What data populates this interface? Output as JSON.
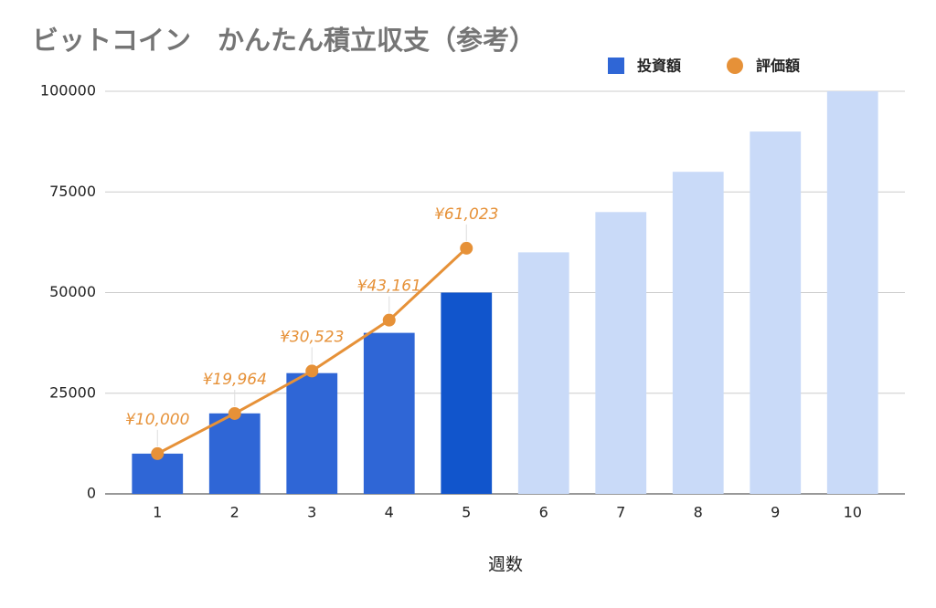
{
  "chart_data": {
    "type": "bar",
    "title": "ビットコイン　かんたん積立収支（参考）",
    "x_label": "週数",
    "categories": [
      1,
      2,
      3,
      4,
      5,
      6,
      7,
      8,
      9,
      10
    ],
    "series": [
      {
        "name": "投資額",
        "type": "bar",
        "color": "#2f66d6",
        "colors": [
          "#2f66d6",
          "#2f66d6",
          "#2f66d6",
          "#2f66d6",
          "#1155cc",
          "#c9daf8",
          "#c9daf8",
          "#c9daf8",
          "#c9daf8",
          "#c9daf8"
        ],
        "values": [
          10000,
          20000,
          30000,
          40000,
          50000,
          60000,
          70000,
          80000,
          90000,
          100000
        ]
      },
      {
        "name": "評価額",
        "type": "line",
        "color": "#e69138",
        "values": [
          10000,
          19964,
          30523,
          43161,
          61023,
          null,
          null,
          null,
          null,
          null
        ],
        "value_labels": [
          "¥10,000",
          "¥19,964",
          "¥30,523",
          "¥43,161",
          "¥61,023",
          null,
          null,
          null,
          null,
          null
        ]
      }
    ],
    "ylim": [
      0,
      100000
    ],
    "yticks": [
      0,
      25000,
      50000,
      75000,
      100000
    ],
    "grid": true,
    "legend": "top"
  }
}
